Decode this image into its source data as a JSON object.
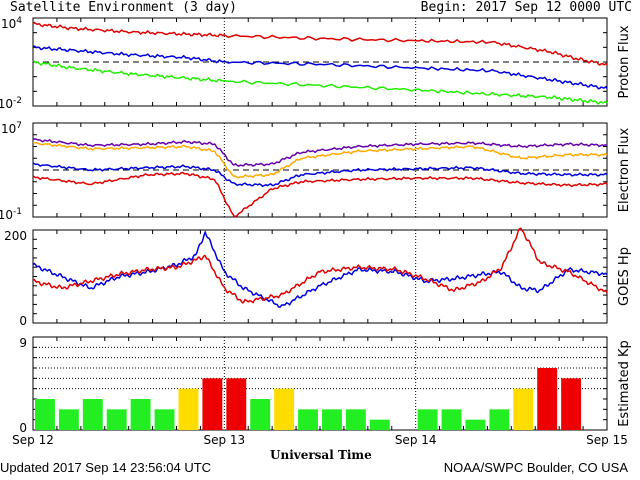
{
  "header": {
    "title": "Satellite Environment (3 day)",
    "begin": "Begin:  2017 Sep 12 0000 UTC"
  },
  "footer": {
    "updated": "Updated 2017 Sep 14 23:56:04 UTC",
    "credit": "NOAA/SWPC Boulder, CO USA"
  },
  "colors": {
    "red": "#dd0000",
    "blue": "#0000dd",
    "green": "#22ee00",
    "orange": "#ffaa00",
    "purple": "#6600aa",
    "kp_green": "#22ee22",
    "kp_yellow": "#ffdd00",
    "kp_red": "#ee0000"
  },
  "chart_data": [
    {
      "type": "line",
      "ylabel": "Proton Flux",
      "ytick_labels": [
        {
          "base": "10",
          "exp": "4"
        },
        {
          "base": "10",
          "exp": "-2"
        }
      ],
      "ylim_log10": [
        -2,
        4
      ],
      "threshold_log10": 1,
      "xlim_days": [
        0,
        3
      ],
      "series": [
        {
          "color": "red",
          "x": [
            0,
            0.2,
            0.5,
            0.8,
            1.0,
            1.5,
            2.0,
            2.4,
            2.7,
            2.85,
            3.0
          ],
          "y": [
            3.6,
            3.3,
            3.05,
            2.9,
            2.8,
            2.6,
            2.45,
            2.35,
            1.7,
            1.2,
            0.8
          ]
        },
        {
          "color": "blue",
          "x": [
            0,
            0.2,
            0.5,
            0.8,
            1.0,
            1.5,
            2.0,
            2.4,
            2.7,
            2.85,
            3.0
          ],
          "y": [
            2.0,
            1.8,
            1.5,
            1.3,
            1.0,
            0.85,
            0.6,
            0.4,
            -0.2,
            -0.5,
            -0.8
          ]
        },
        {
          "color": "green",
          "x": [
            0,
            0.2,
            0.5,
            0.8,
            1.0,
            1.5,
            2.0,
            2.4,
            2.7,
            2.85,
            3.0
          ],
          "y": [
            1.0,
            0.6,
            0.2,
            -0.1,
            -0.3,
            -0.6,
            -0.9,
            -1.2,
            -1.4,
            -1.6,
            -1.8
          ]
        }
      ]
    },
    {
      "type": "line",
      "ylabel": "Electron Flux",
      "ytick_labels": [
        {
          "base": "10",
          "exp": "7"
        },
        {
          "base": "10",
          "exp": "-1"
        }
      ],
      "ylim_log10": [
        -1,
        7
      ],
      "threshold_log10": 3,
      "xlim_days": [
        0,
        3
      ],
      "series": [
        {
          "color": "purple",
          "x": [
            0,
            0.3,
            0.6,
            0.8,
            0.95,
            1.05,
            1.25,
            1.4,
            1.7,
            2.0,
            2.3,
            2.55,
            2.8,
            3.0
          ],
          "y": [
            5.6,
            5.1,
            5.2,
            5.4,
            5.2,
            3.4,
            3.5,
            4.5,
            5.0,
            5.2,
            5.3,
            5.0,
            5.2,
            5.1
          ]
        },
        {
          "color": "orange",
          "x": [
            0,
            0.3,
            0.6,
            0.8,
            0.95,
            1.05,
            1.25,
            1.4,
            1.7,
            2.0,
            2.3,
            2.55,
            2.8,
            3.0
          ],
          "y": [
            5.3,
            4.8,
            4.9,
            5.0,
            4.6,
            2.4,
            2.6,
            4.0,
            4.6,
            4.8,
            5.0,
            4.0,
            4.3,
            4.3
          ]
        },
        {
          "color": "blue",
          "x": [
            0,
            0.3,
            0.6,
            0.8,
            0.95,
            1.05,
            1.25,
            1.4,
            1.7,
            2.0,
            2.3,
            2.55,
            2.8,
            3.0
          ],
          "y": [
            3.5,
            3.0,
            3.2,
            3.3,
            3.0,
            1.8,
            1.7,
            2.6,
            3.0,
            3.1,
            3.2,
            2.7,
            2.6,
            2.6
          ]
        },
        {
          "color": "red",
          "x": [
            0,
            0.3,
            0.6,
            0.8,
            0.95,
            1.05,
            1.25,
            1.4,
            1.7,
            2.0,
            2.3,
            2.55,
            2.8,
            3.0
          ],
          "y": [
            2.4,
            1.8,
            2.6,
            2.7,
            2.2,
            -1.0,
            1.4,
            2.0,
            2.2,
            2.3,
            2.3,
            1.9,
            1.7,
            1.8
          ]
        }
      ]
    },
    {
      "type": "line",
      "ylabel": "GOES Hp",
      "ytick_labels": [
        "200",
        "0"
      ],
      "ylim": [
        0,
        200
      ],
      "xlim_days": [
        0,
        3
      ],
      "series": [
        {
          "color": "blue",
          "x": [
            0,
            0.15,
            0.3,
            0.45,
            0.6,
            0.75,
            0.85,
            0.9,
            1.0,
            1.1,
            1.3,
            1.5,
            1.7,
            1.9,
            2.05,
            2.2,
            2.35,
            2.45,
            2.55,
            2.65,
            2.8,
            3.0
          ],
          "y": [
            125,
            100,
            75,
            100,
            110,
            125,
            145,
            195,
            110,
            75,
            35,
            80,
            115,
            110,
            90,
            95,
            105,
            110,
            75,
            70,
            115,
            105
          ]
        },
        {
          "color": "red",
          "x": [
            0,
            0.15,
            0.3,
            0.45,
            0.6,
            0.75,
            0.85,
            0.9,
            1.0,
            1.1,
            1.3,
            1.5,
            1.7,
            1.9,
            2.05,
            2.2,
            2.35,
            2.45,
            2.55,
            2.65,
            2.8,
            3.0
          ],
          "y": [
            90,
            75,
            90,
            105,
            115,
            120,
            135,
            145,
            75,
            45,
            60,
            110,
            120,
            115,
            95,
            70,
            90,
            120,
            205,
            130,
            110,
            65
          ]
        }
      ]
    },
    {
      "type": "bar",
      "ylabel": "Estimated Kp",
      "ytick_labels": [
        "9",
        "0"
      ],
      "ylim": [
        0,
        9
      ],
      "gridlines": [
        4,
        5,
        6,
        7,
        8
      ],
      "xlim_days": [
        0,
        3
      ],
      "values": [
        3,
        2,
        3,
        2,
        3,
        2,
        4,
        5,
        5,
        3,
        4,
        2,
        2,
        2,
        1,
        0,
        2,
        2,
        1,
        2,
        4,
        6,
        5,
        0
      ],
      "colors": [
        "kp_green",
        "kp_green",
        "kp_green",
        "kp_green",
        "kp_green",
        "kp_green",
        "kp_yellow",
        "kp_red",
        "kp_red",
        "kp_green",
        "kp_yellow",
        "kp_green",
        "kp_green",
        "kp_green",
        "kp_green",
        "kp_green",
        "kp_green",
        "kp_green",
        "kp_green",
        "kp_green",
        "kp_yellow",
        "kp_red",
        "kp_red",
        "kp_green"
      ]
    }
  ],
  "x_axis": {
    "labels": [
      "Sep 12",
      "Sep 13",
      "Sep 14",
      "Sep 15"
    ],
    "title": "Universal Time"
  }
}
